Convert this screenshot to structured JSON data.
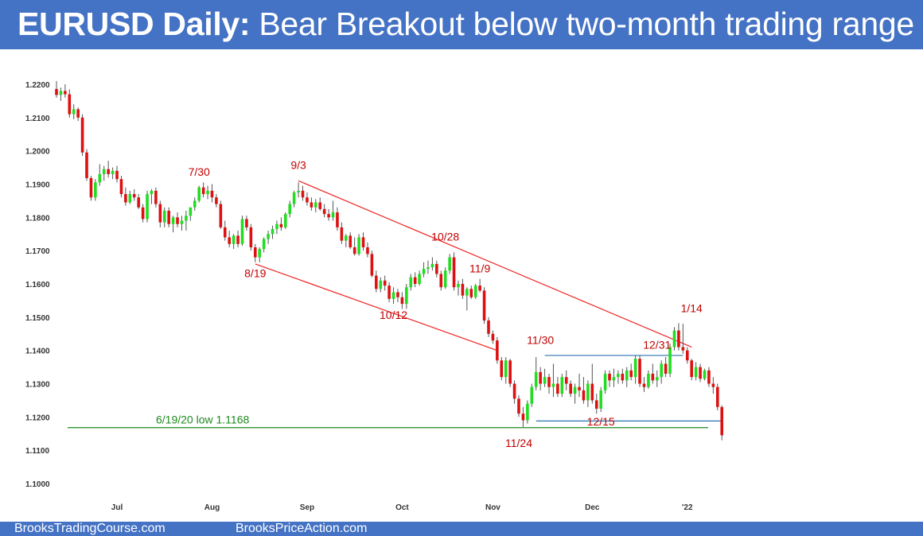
{
  "header": {
    "title_bold": "EURUSD Daily:",
    "title_rest": " Bear Breakout below two-month trading range"
  },
  "footer": {
    "left_link": "BrooksTradingCourse.com",
    "right_link": "BrooksPriceAction.com"
  },
  "colors": {
    "header_bg": "#4472c4",
    "bull": "#22dd22",
    "bear": "#dd1111",
    "trendline": "#ee2222",
    "range_line": "#2e74b5",
    "support_line": "#1e8a1e",
    "annotation": "#c00000"
  },
  "chart_data": {
    "type": "candlestick",
    "title": "EURUSD Daily",
    "ylim": [
      1.095,
      1.225
    ],
    "y_ticks": [
      "1.1000",
      "1.1100",
      "1.1200",
      "1.1300",
      "1.1400",
      "1.1500",
      "1.1600",
      "1.1700",
      "1.1800",
      "1.1900",
      "1.2000",
      "1.2100",
      "1.2200"
    ],
    "x_ticks": [
      {
        "label": "Jul",
        "bar": 14
      },
      {
        "label": "Aug",
        "bar": 36
      },
      {
        "label": "Sep",
        "bar": 58
      },
      {
        "label": "Oct",
        "bar": 80
      },
      {
        "label": "Nov",
        "bar": 101
      },
      {
        "label": "Dec",
        "bar": 124
      },
      {
        "label": "'22",
        "bar": 146
      }
    ],
    "candles": [
      [
        1.2186,
        1.221,
        1.216,
        1.2168
      ],
      [
        1.2168,
        1.219,
        1.215,
        1.218
      ],
      [
        1.218,
        1.22,
        1.216,
        1.217
      ],
      [
        1.217,
        1.2185,
        1.21,
        1.211
      ],
      [
        1.211,
        1.214,
        1.2095,
        1.2125
      ],
      [
        1.2125,
        1.213,
        1.209,
        1.21
      ],
      [
        1.21,
        1.211,
        1.1985,
        1.1995
      ],
      [
        1.1995,
        1.2005,
        1.191,
        1.1918
      ],
      [
        1.1918,
        1.1925,
        1.185,
        1.186
      ],
      [
        1.186,
        1.1915,
        1.185,
        1.1905
      ],
      [
        1.1905,
        1.196,
        1.1895,
        1.193
      ],
      [
        1.193,
        1.1955,
        1.191,
        1.1945
      ],
      [
        1.1945,
        1.197,
        1.192,
        1.193
      ],
      [
        1.193,
        1.195,
        1.1915,
        1.194
      ],
      [
        1.194,
        1.1955,
        1.1905,
        1.1915
      ],
      [
        1.1915,
        1.1925,
        1.186,
        1.187
      ],
      [
        1.187,
        1.189,
        1.1835,
        1.1845
      ],
      [
        1.1845,
        1.188,
        1.184,
        1.187
      ],
      [
        1.187,
        1.1885,
        1.185,
        1.186
      ],
      [
        1.186,
        1.187,
        1.1825,
        1.183
      ],
      [
        1.183,
        1.184,
        1.1785,
        1.1795
      ],
      [
        1.1795,
        1.188,
        1.1785,
        1.187
      ],
      [
        1.187,
        1.1885,
        1.184,
        1.188
      ],
      [
        1.188,
        1.189,
        1.183,
        1.184
      ],
      [
        1.184,
        1.185,
        1.177,
        1.1785
      ],
      [
        1.1785,
        1.183,
        1.177,
        1.182
      ],
      [
        1.182,
        1.183,
        1.177,
        1.178
      ],
      [
        1.178,
        1.1805,
        1.1755,
        1.18
      ],
      [
        1.18,
        1.1815,
        1.177,
        1.178
      ],
      [
        1.178,
        1.1805,
        1.176,
        1.179
      ],
      [
        1.179,
        1.182,
        1.176,
        1.1805
      ],
      [
        1.1805,
        1.183,
        1.179,
        1.183
      ],
      [
        1.183,
        1.186,
        1.182,
        1.185
      ],
      [
        1.185,
        1.1895,
        1.1845,
        1.189
      ],
      [
        1.189,
        1.1905,
        1.186,
        1.187
      ],
      [
        1.187,
        1.1895,
        1.1855,
        1.188
      ],
      [
        1.188,
        1.19,
        1.1845,
        1.186
      ],
      [
        1.186,
        1.187,
        1.183,
        1.184
      ],
      [
        1.184,
        1.185,
        1.1765,
        1.177
      ],
      [
        1.177,
        1.179,
        1.173,
        1.174
      ],
      [
        1.174,
        1.176,
        1.171,
        1.172
      ],
      [
        1.172,
        1.175,
        1.1705,
        1.1745
      ],
      [
        1.1745,
        1.176,
        1.171,
        1.172
      ],
      [
        1.172,
        1.1805,
        1.1715,
        1.1795
      ],
      [
        1.1795,
        1.1805,
        1.176,
        1.177
      ],
      [
        1.177,
        1.178,
        1.17,
        1.171
      ],
      [
        1.171,
        1.172,
        1.1665,
        1.168
      ],
      [
        1.168,
        1.171,
        1.1665,
        1.1705
      ],
      [
        1.1705,
        1.174,
        1.1695,
        1.1735
      ],
      [
        1.1735,
        1.176,
        1.172,
        1.175
      ],
      [
        1.175,
        1.1775,
        1.1735,
        1.1765
      ],
      [
        1.1765,
        1.179,
        1.175,
        1.178
      ],
      [
        1.178,
        1.18,
        1.176,
        1.177
      ],
      [
        1.177,
        1.1815,
        1.1765,
        1.181
      ],
      [
        1.181,
        1.185,
        1.18,
        1.184
      ],
      [
        1.184,
        1.188,
        1.183,
        1.1875
      ],
      [
        1.1875,
        1.1905,
        1.186,
        1.188
      ],
      [
        1.188,
        1.1895,
        1.185,
        1.186
      ],
      [
        1.186,
        1.1875,
        1.1835,
        1.1845
      ],
      [
        1.1845,
        1.186,
        1.182,
        1.183
      ],
      [
        1.183,
        1.1855,
        1.1815,
        1.1845
      ],
      [
        1.1845,
        1.186,
        1.182,
        1.1825
      ],
      [
        1.1825,
        1.184,
        1.18,
        1.181
      ],
      [
        1.181,
        1.1825,
        1.179,
        1.18
      ],
      [
        1.18,
        1.185,
        1.179,
        1.1815
      ],
      [
        1.1815,
        1.183,
        1.176,
        1.177
      ],
      [
        1.177,
        1.1785,
        1.172,
        1.173
      ],
      [
        1.173,
        1.175,
        1.171,
        1.1745
      ],
      [
        1.1745,
        1.1755,
        1.1705,
        1.171
      ],
      [
        1.171,
        1.174,
        1.1685,
        1.169
      ],
      [
        1.169,
        1.175,
        1.1685,
        1.174
      ],
      [
        1.174,
        1.1755,
        1.17,
        1.171
      ],
      [
        1.171,
        1.1725,
        1.168,
        1.169
      ],
      [
        1.169,
        1.17,
        1.162,
        1.1625
      ],
      [
        1.1625,
        1.164,
        1.1575,
        1.1585
      ],
      [
        1.1585,
        1.162,
        1.1575,
        1.161
      ],
      [
        1.161,
        1.1625,
        1.158,
        1.1595
      ],
      [
        1.1595,
        1.1605,
        1.1545,
        1.1555
      ],
      [
        1.1555,
        1.159,
        1.154,
        1.1575
      ],
      [
        1.1575,
        1.1585,
        1.1545,
        1.156
      ],
      [
        1.156,
        1.1575,
        1.1525,
        1.154
      ],
      [
        1.154,
        1.16,
        1.1525,
        1.159
      ],
      [
        1.159,
        1.163,
        1.158,
        1.162
      ],
      [
        1.162,
        1.1635,
        1.159,
        1.16
      ],
      [
        1.16,
        1.164,
        1.1595,
        1.163
      ],
      [
        1.163,
        1.1665,
        1.162,
        1.1645
      ],
      [
        1.1645,
        1.167,
        1.163,
        1.165
      ],
      [
        1.165,
        1.168,
        1.164,
        1.166
      ],
      [
        1.166,
        1.167,
        1.162,
        1.163
      ],
      [
        1.163,
        1.164,
        1.158,
        1.159
      ],
      [
        1.159,
        1.165,
        1.1585,
        1.164
      ],
      [
        1.164,
        1.169,
        1.163,
        1.168
      ],
      [
        1.168,
        1.1695,
        1.158,
        1.159
      ],
      [
        1.159,
        1.161,
        1.1565,
        1.16
      ],
      [
        1.16,
        1.1615,
        1.1555,
        1.1565
      ],
      [
        1.1565,
        1.159,
        1.152,
        1.1585
      ],
      [
        1.1585,
        1.1595,
        1.1555,
        1.156
      ],
      [
        1.156,
        1.16,
        1.1555,
        1.1595
      ],
      [
        1.1595,
        1.1615,
        1.1575,
        1.158
      ],
      [
        1.158,
        1.159,
        1.148,
        1.149
      ],
      [
        1.149,
        1.15,
        1.144,
        1.145
      ],
      [
        1.145,
        1.146,
        1.142,
        1.143
      ],
      [
        1.143,
        1.144,
        1.136,
        1.137
      ],
      [
        1.137,
        1.138,
        1.131,
        1.132
      ],
      [
        1.132,
        1.138,
        1.13,
        1.137
      ],
      [
        1.137,
        1.1375,
        1.129,
        1.13
      ],
      [
        1.13,
        1.131,
        1.124,
        1.1255
      ],
      [
        1.1255,
        1.1265,
        1.12,
        1.121
      ],
      [
        1.121,
        1.123,
        1.117,
        1.119
      ],
      [
        1.119,
        1.125,
        1.118,
        1.124
      ],
      [
        1.124,
        1.13,
        1.123,
        1.129
      ],
      [
        1.129,
        1.138,
        1.128,
        1.1335
      ],
      [
        1.1335,
        1.135,
        1.128,
        1.13
      ],
      [
        1.13,
        1.1345,
        1.129,
        1.132
      ],
      [
        1.132,
        1.133,
        1.127,
        1.129
      ],
      [
        1.129,
        1.136,
        1.126,
        1.13
      ],
      [
        1.13,
        1.132,
        1.126,
        1.127
      ],
      [
        1.127,
        1.133,
        1.126,
        1.132
      ],
      [
        1.132,
        1.134,
        1.128,
        1.13
      ],
      [
        1.13,
        1.131,
        1.126,
        1.127
      ],
      [
        1.127,
        1.13,
        1.124,
        1.129
      ],
      [
        1.129,
        1.133,
        1.126,
        1.128
      ],
      [
        1.128,
        1.132,
        1.124,
        1.125
      ],
      [
        1.125,
        1.131,
        1.123,
        1.13
      ],
      [
        1.13,
        1.136,
        1.124,
        1.125
      ],
      [
        1.125,
        1.127,
        1.121,
        1.1225
      ],
      [
        1.1225,
        1.129,
        1.1215,
        1.128
      ],
      [
        1.128,
        1.134,
        1.127,
        1.133
      ],
      [
        1.133,
        1.134,
        1.129,
        1.131
      ],
      [
        1.131,
        1.1345,
        1.129,
        1.132
      ],
      [
        1.132,
        1.134,
        1.13,
        1.133
      ],
      [
        1.133,
        1.1345,
        1.13,
        1.131
      ],
      [
        1.131,
        1.135,
        1.129,
        1.134
      ],
      [
        1.134,
        1.136,
        1.131,
        1.132
      ],
      [
        1.132,
        1.1385,
        1.13,
        1.1375
      ],
      [
        1.1375,
        1.1385,
        1.129,
        1.13
      ],
      [
        1.13,
        1.132,
        1.1275,
        1.129
      ],
      [
        1.129,
        1.134,
        1.1285,
        1.133
      ],
      [
        1.133,
        1.136,
        1.13,
        1.131
      ],
      [
        1.131,
        1.134,
        1.129,
        1.132
      ],
      [
        1.132,
        1.137,
        1.13,
        1.136
      ],
      [
        1.136,
        1.138,
        1.132,
        1.133
      ],
      [
        1.133,
        1.142,
        1.132,
        1.141
      ],
      [
        1.141,
        1.147,
        1.14,
        1.146
      ],
      [
        1.146,
        1.1482,
        1.14,
        1.141
      ],
      [
        1.141,
        1.148,
        1.139,
        1.14
      ],
      [
        1.14,
        1.141,
        1.136,
        1.137
      ],
      [
        1.137,
        1.1375,
        1.131,
        1.132
      ],
      [
        1.132,
        1.1365,
        1.131,
        1.135
      ],
      [
        1.135,
        1.136,
        1.1305,
        1.1315
      ],
      [
        1.1315,
        1.1345,
        1.131,
        1.134
      ],
      [
        1.134,
        1.135,
        1.129,
        1.13
      ],
      [
        1.13,
        1.132,
        1.127,
        1.129
      ],
      [
        1.129,
        1.13,
        1.122,
        1.123
      ],
      [
        1.123,
        1.1235,
        1.113,
        1.1145
      ]
    ],
    "annotations": [
      {
        "text": "7/30",
        "bar": 33,
        "price": 1.1925
      },
      {
        "text": "9/3",
        "bar": 56,
        "price": 1.1945
      },
      {
        "text": "8/19",
        "bar": 46,
        "price": 1.162
      },
      {
        "text": "10/28",
        "bar": 90,
        "price": 1.173
      },
      {
        "text": "11/9",
        "bar": 98,
        "price": 1.1635
      },
      {
        "text": "10/12",
        "bar": 78,
        "price": 1.1495
      },
      {
        "text": "11/30",
        "bar": 112,
        "price": 1.142
      },
      {
        "text": "12/31",
        "bar": 139,
        "price": 1.1405
      },
      {
        "text": "1/14",
        "bar": 147,
        "price": 1.1515
      },
      {
        "text": "12/15",
        "bar": 126,
        "price": 1.1175
      },
      {
        "text": "11/24",
        "bar": 107,
        "price": 1.111
      }
    ],
    "support_label": "6/19/20 low 1.1168",
    "support_price": 1.1168,
    "range_top": 1.1385,
    "range_bottom": 1.1188,
    "channel_top": [
      [
        56,
        1.191
      ],
      [
        147,
        1.141
      ]
    ],
    "channel_bottom": [
      [
        46,
        1.166
      ],
      [
        102,
        1.14
      ]
    ]
  }
}
